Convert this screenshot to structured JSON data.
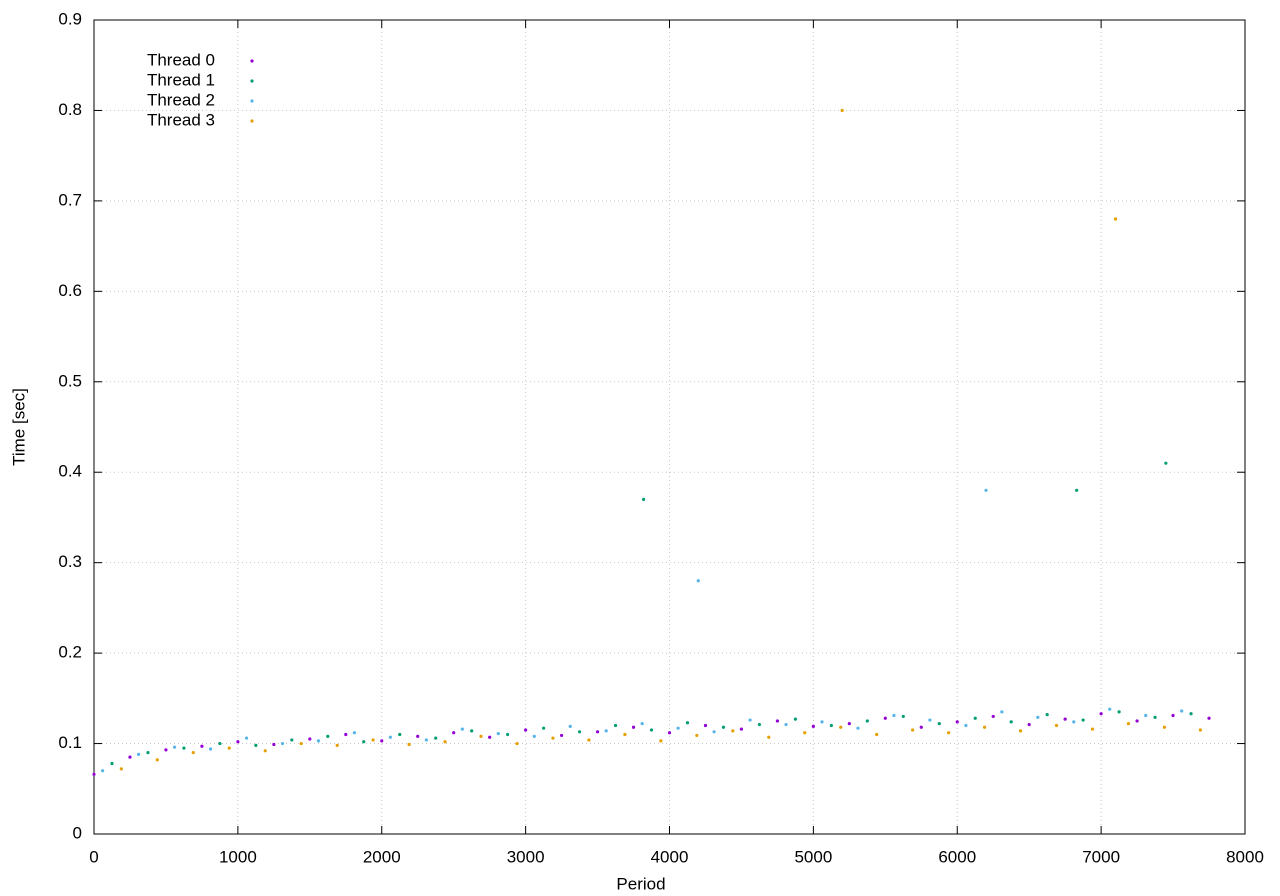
{
  "chart_data": {
    "type": "scatter",
    "x_label": "Period",
    "y_label": "Time [sec]",
    "xlim": [
      0,
      8000
    ],
    "ylim": [
      0,
      0.9
    ],
    "xticks": [
      0,
      1000,
      2000,
      3000,
      4000,
      5000,
      6000,
      7000,
      8000
    ],
    "yticks": [
      0,
      0.1,
      0.2,
      0.3,
      0.4,
      0.5,
      0.6,
      0.7,
      0.8,
      0.9
    ],
    "grid": true,
    "legend": "top-left",
    "series": [
      {
        "name": "Thread 0",
        "color": "#9400d3",
        "x": [
          0,
          250,
          500,
          750,
          1000,
          1250,
          1500,
          1750,
          2000,
          2250,
          2500,
          2750,
          3000,
          3250,
          3500,
          3750,
          4000,
          4250,
          4500,
          4750,
          5000,
          5250,
          5500,
          5750,
          6000,
          6250,
          6500,
          6750,
          7000,
          7250,
          7500,
          7750
        ],
        "values": [
          0.066,
          0.085,
          0.093,
          0.097,
          0.102,
          0.099,
          0.105,
          0.11,
          0.103,
          0.108,
          0.112,
          0.107,
          0.115,
          0.109,
          0.113,
          0.118,
          0.112,
          0.12,
          0.116,
          0.125,
          0.119,
          0.122,
          0.128,
          0.118,
          0.124,
          0.13,
          0.121,
          0.127,
          0.133,
          0.125,
          0.131,
          0.128
        ]
      },
      {
        "name": "Thread 1",
        "color": "#009e73",
        "x": [
          125,
          375,
          625,
          875,
          1125,
          1375,
          1625,
          1875,
          2125,
          2375,
          2625,
          2875,
          3125,
          3375,
          3625,
          3875,
          4125,
          4375,
          4625,
          4875,
          5125,
          5375,
          5625,
          5875,
          6125,
          6375,
          6625,
          6875,
          7125,
          7375,
          7625,
          3820,
          6830,
          7450
        ],
        "values": [
          0.078,
          0.09,
          0.095,
          0.1,
          0.098,
          0.104,
          0.108,
          0.102,
          0.11,
          0.106,
          0.114,
          0.11,
          0.117,
          0.113,
          0.12,
          0.115,
          0.123,
          0.118,
          0.121,
          0.127,
          0.12,
          0.125,
          0.13,
          0.122,
          0.128,
          0.124,
          0.132,
          0.126,
          0.135,
          0.129,
          0.133,
          0.37,
          0.38,
          0.41
        ]
      },
      {
        "name": "Thread 2",
        "color": "#56b4e9",
        "x": [
          60,
          310,
          560,
          810,
          1060,
          1310,
          1560,
          1810,
          2060,
          2310,
          2560,
          2810,
          3060,
          3310,
          3560,
          3810,
          4060,
          4310,
          4560,
          4810,
          5060,
          5310,
          5560,
          5810,
          6060,
          6310,
          6560,
          6810,
          7060,
          7310,
          7560,
          4200,
          6200
        ],
        "values": [
          0.07,
          0.088,
          0.096,
          0.094,
          0.106,
          0.1,
          0.103,
          0.112,
          0.107,
          0.104,
          0.116,
          0.111,
          0.108,
          0.119,
          0.114,
          0.122,
          0.117,
          0.113,
          0.126,
          0.121,
          0.124,
          0.117,
          0.131,
          0.126,
          0.12,
          0.135,
          0.129,
          0.124,
          0.138,
          0.131,
          0.136,
          0.28,
          0.38
        ]
      },
      {
        "name": "Thread 3",
        "color": "#e69f00",
        "x": [
          190,
          440,
          690,
          940,
          1190,
          1440,
          1690,
          1940,
          2190,
          2440,
          2690,
          2940,
          3190,
          3440,
          3690,
          3940,
          4190,
          4440,
          4690,
          4940,
          5190,
          5440,
          5690,
          5940,
          6190,
          6440,
          6690,
          6940,
          7190,
          7440,
          7690,
          5200,
          7100
        ],
        "values": [
          0.072,
          0.082,
          0.09,
          0.095,
          0.092,
          0.1,
          0.098,
          0.104,
          0.099,
          0.102,
          0.108,
          0.1,
          0.106,
          0.104,
          0.11,
          0.103,
          0.109,
          0.114,
          0.107,
          0.112,
          0.118,
          0.11,
          0.115,
          0.112,
          0.118,
          0.114,
          0.12,
          0.116,
          0.122,
          0.118,
          0.115,
          0.8,
          0.68
        ]
      }
    ]
  }
}
